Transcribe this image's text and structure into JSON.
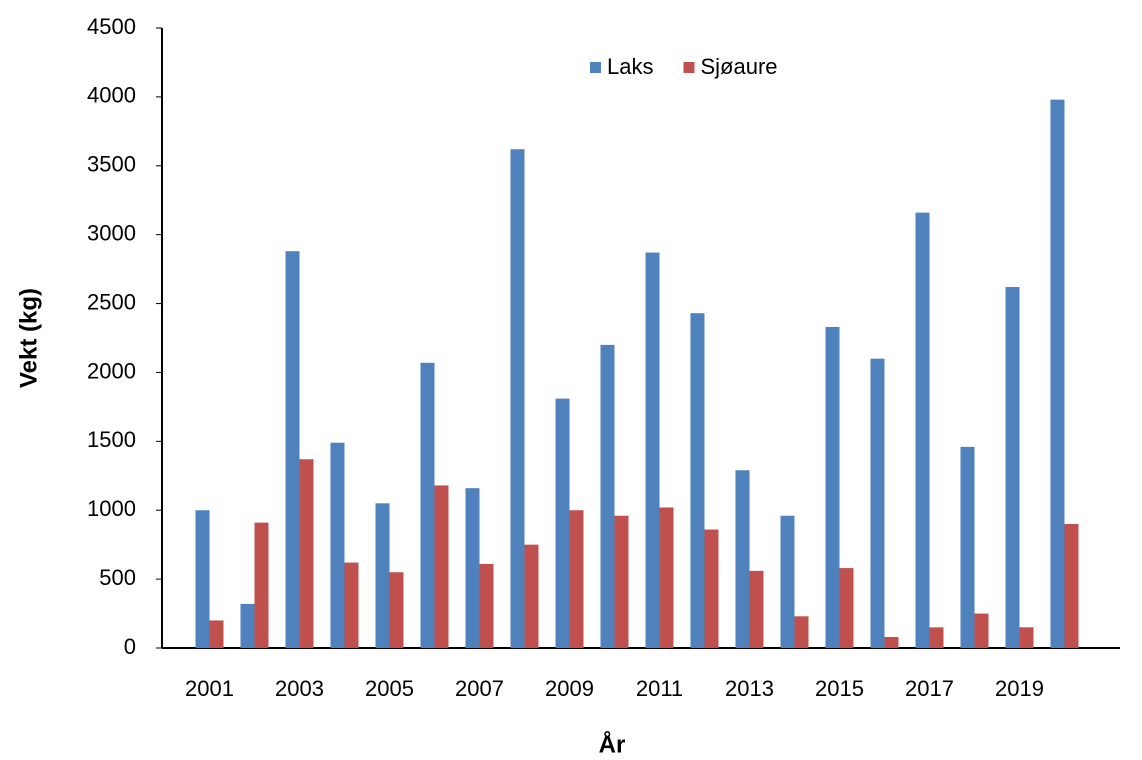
{
  "chart_data": {
    "type": "bar",
    "x_label": "År",
    "y_label": "Vekt (kg)",
    "categories": [
      "2001",
      null,
      "2003",
      null,
      "2005",
      null,
      "2007",
      null,
      "2009",
      null,
      "2011",
      null,
      "2013",
      null,
      "2015",
      null,
      "2017",
      null,
      "2019",
      null
    ],
    "series": [
      {
        "name": "Laks",
        "color": "#4f81bd",
        "values": [
          1000,
          320,
          2880,
          1490,
          1050,
          2070,
          1160,
          3620,
          1810,
          2200,
          2870,
          2430,
          1290,
          960,
          2330,
          2100,
          3160,
          1460,
          2620,
          3980
        ]
      },
      {
        "name": "Sjøaure",
        "color": "#c0504d",
        "values": [
          200,
          910,
          1370,
          620,
          550,
          1180,
          610,
          750,
          1000,
          960,
          1020,
          860,
          560,
          230,
          580,
          80,
          150,
          250,
          150,
          900
        ]
      }
    ],
    "ylim": [
      0,
      4500
    ],
    "yticks": [
      0,
      500,
      1000,
      1500,
      2000,
      2500,
      3000,
      3500,
      4000,
      4500
    ],
    "grid": false,
    "legend": "top"
  }
}
